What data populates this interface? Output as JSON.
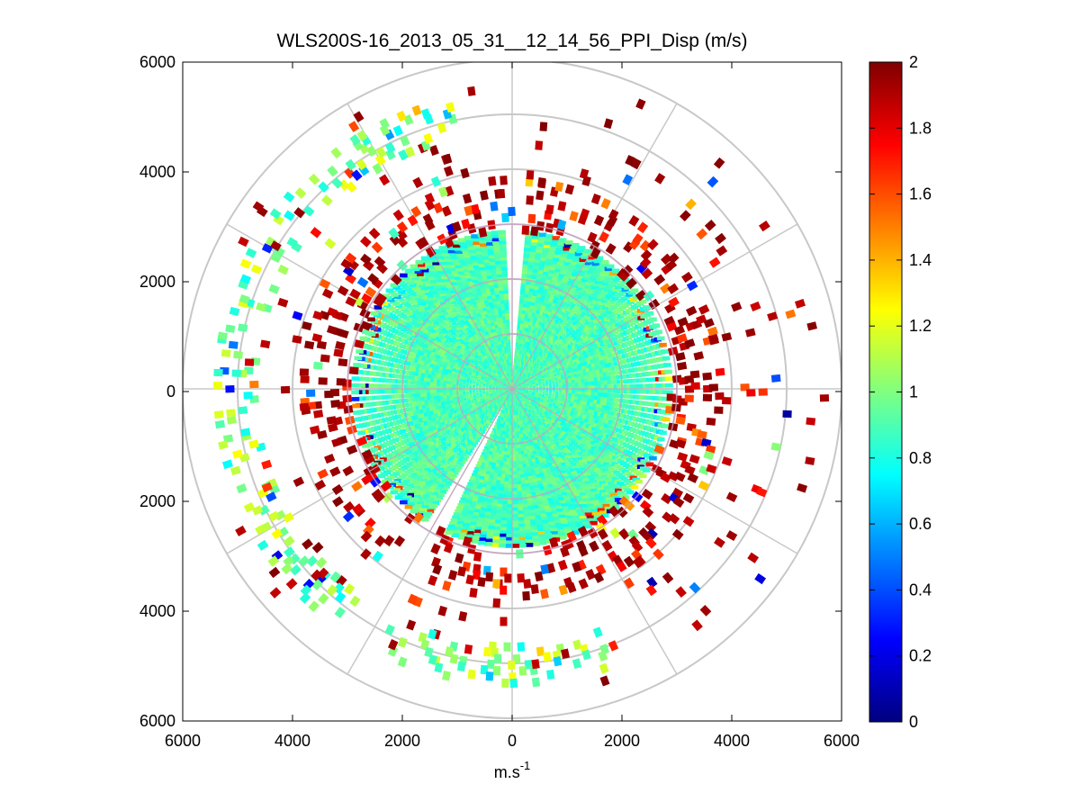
{
  "chart_data": {
    "type": "heatmap",
    "subtype": "polar-ppi",
    "title": "WLS200S-16_2013_05_31__12_14_56_PPI_Disp (m/s)",
    "xlabel_base": "m.s",
    "xlabel_exp": "-1",
    "xlim": [
      -6000,
      6000
    ],
    "ylim": [
      -6000,
      6000
    ],
    "x_ticks": [
      -6000,
      -4000,
      -2000,
      0,
      2000,
      4000,
      6000
    ],
    "x_tick_labels": [
      "6000",
      "4000",
      "2000",
      "0",
      "2000",
      "4000",
      "6000"
    ],
    "y_ticks": [
      6000,
      4000,
      2000,
      0,
      -2000,
      -4000,
      -6000
    ],
    "y_tick_labels": [
      "6000",
      "4000",
      "2000",
      "0",
      "2000",
      "4000",
      "6000"
    ],
    "range_rings_m": [
      1000,
      2000,
      3000,
      4000,
      5000,
      6000
    ],
    "spokes_deg": [
      0,
      30,
      60,
      90,
      120,
      150,
      180,
      210,
      240,
      270,
      300,
      330
    ],
    "colorbar": {
      "min": 0,
      "max": 2,
      "ticks": [
        0,
        0.2,
        0.4,
        0.6,
        0.8,
        1,
        1.2,
        1.4,
        1.6,
        1.8,
        2
      ],
      "tick_labels": [
        "0",
        "0.2",
        "0.4",
        "0.6",
        "0.8",
        "1",
        "1.2",
        "1.4",
        "1.6",
        "1.8",
        "2"
      ],
      "colormap": "jet"
    },
    "dense_core": {
      "max_range_m": 2900,
      "typical_value": 0.9,
      "spread": 0.12
    },
    "gap_sectors_deg": [
      [
        -2.5,
        2.5
      ],
      [
        205,
        212
      ]
    ],
    "sparse_shells": [
      {
        "r_min_m": 2900,
        "r_max_m": 3800,
        "mean_value": 1.7,
        "density": 0.45
      },
      {
        "r_min_m": 3800,
        "r_max_m": 4700,
        "mean_value": 1.9,
        "density": 0.1
      },
      {
        "r_min_m": 4700,
        "r_max_m": 5400,
        "mean_value": 1.0,
        "density": 0.6,
        "angle_from_deg": 160,
        "angle_to_deg": 345
      },
      {
        "r_min_m": 4700,
        "r_max_m": 5800,
        "mean_value": 1.9,
        "density": 0.05
      }
    ],
    "random_seed": 31
  }
}
